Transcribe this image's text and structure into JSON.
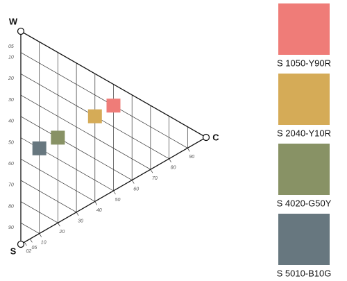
{
  "triangle": {
    "corners": {
      "white": "W",
      "black": "S",
      "chromatic": "C"
    },
    "blackness_scale": [
      "05",
      "10",
      "20",
      "30",
      "40",
      "50",
      "60",
      "70",
      "80",
      "90"
    ],
    "chromaticness_scale": [
      "02",
      "05",
      "10",
      "20",
      "30",
      "40",
      "50",
      "60",
      "70",
      "80",
      "90"
    ]
  },
  "samples": [
    {
      "notation": "S 1050-Y90R",
      "color": "#ef7c78"
    },
    {
      "notation": "S 2040-Y10R",
      "color": "#d5ab57"
    },
    {
      "notation": "S 4020-G50Y",
      "color": "#889265"
    },
    {
      "notation": "S 5010-B10G",
      "color": "#67777f"
    }
  ]
}
